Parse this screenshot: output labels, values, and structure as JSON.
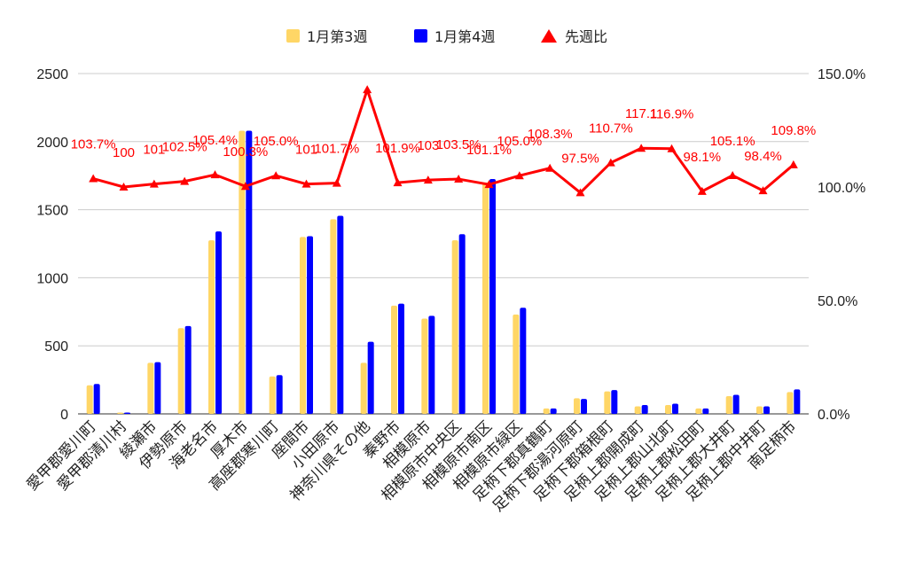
{
  "chart_data": {
    "type": "bar",
    "categories": [
      "愛甲郡愛川町",
      "愛甲郡清川村",
      "綾瀬市",
      "伊勢原市",
      "海老名市",
      "厚木市",
      "高座郡寒川町",
      "座間市",
      "小田原市",
      "神奈川県その他",
      "秦野市",
      "相模原市",
      "相模原市中央区",
      "相模原市南区",
      "相模原市緑区",
      "足柄下郡真鶴町",
      "足柄下郡湯河原町",
      "足柄下郡箱根町",
      "足柄上郡開成町",
      "足柄上郡山北町",
      "足柄上郡松田町",
      "足柄上郡大井町",
      "足柄上郡中井町",
      "南足柄市"
    ],
    "series": [
      {
        "name": "1月第3週",
        "type": "bar",
        "axis": "left",
        "color": "#ffd666",
        "values": [
          210,
          10,
          375,
          630,
          1275,
          2080,
          275,
          1300,
          1430,
          375,
          795,
          700,
          1275,
          1700,
          730,
          40,
          115,
          165,
          55,
          65,
          40,
          130,
          55,
          160
        ]
      },
      {
        "name": "1月第4週",
        "type": "bar",
        "axis": "left",
        "color": "#0000ff",
        "values": [
          220,
          10,
          380,
          645,
          1340,
          2080,
          285,
          1305,
          1455,
          530,
          810,
          720,
          1320,
          1725,
          780,
          40,
          110,
          175,
          65,
          75,
          40,
          140,
          55,
          180
        ]
      },
      {
        "name": "先週比",
        "type": "line",
        "axis": "right",
        "color": "#ff0000",
        "marker": "triangle",
        "values": [
          103.7,
          100.0,
          101.3,
          102.5,
          105.4,
          100.3,
          105.0,
          101.3,
          101.7,
          142.9,
          101.9,
          103.1,
          103.5,
          101.1,
          105.0,
          108.3,
          97.5,
          110.7,
          117.1,
          116.9,
          98.1,
          105.1,
          98.4,
          109.8
        ],
        "labels": [
          "103.7%",
          "100",
          "101",
          "102.5%",
          "105.4%",
          "100.3%",
          "105.0%",
          "101",
          "101.7%",
          "",
          "101.9%",
          "103",
          "103.5%",
          "101.1%",
          "105.0%",
          "108.3%",
          "97.5%",
          "110.7%",
          "117.1",
          "116.9%",
          "98.1%",
          "105.1%",
          "98.4%",
          "109.8%"
        ]
      }
    ],
    "y_left": {
      "min": 0,
      "max": 2500,
      "ticks": [
        "0",
        "500",
        "1000",
        "1500",
        "2000",
        "2500"
      ]
    },
    "y_right": {
      "min": 0,
      "max": 150,
      "ticks": [
        "0.0%",
        "50.0%",
        "100.0%",
        "150.0%"
      ]
    },
    "grid": true,
    "legend": "top"
  }
}
